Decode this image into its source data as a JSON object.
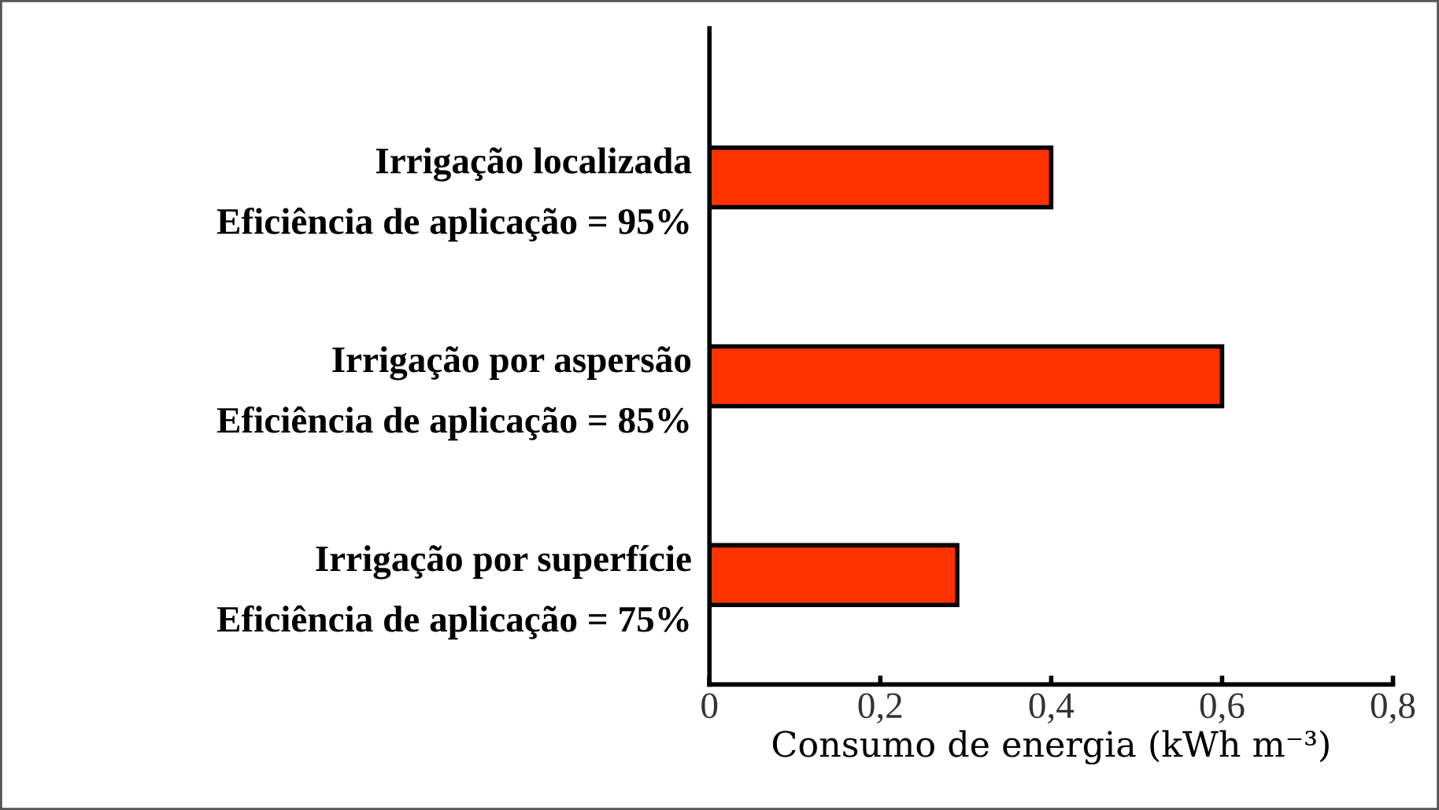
{
  "chart_data": {
    "type": "bar",
    "orientation": "horizontal",
    "categories": [
      "Irrigação localizada\nEficiência de aplicação = 95%",
      "Irrigação por aspersão\nEficiência de aplicação = 85%",
      "Irrigação por superfície\nEficiência de aplicação = 75%"
    ],
    "values": [
      0.4,
      0.6,
      0.29
    ],
    "color": "#ff3300",
    "xlabel": "Consumo de energia (kWh m⁻³)",
    "xlim": [
      0,
      0.8
    ],
    "xticks": [
      {
        "value": 0,
        "label": "0"
      },
      {
        "value": 0.2,
        "label": "0,2"
      },
      {
        "value": 0.4,
        "label": "0,4"
      },
      {
        "value": 0.6,
        "label": "0,6"
      },
      {
        "value": 0.8,
        "label": "0,8"
      }
    ],
    "grid": false
  }
}
